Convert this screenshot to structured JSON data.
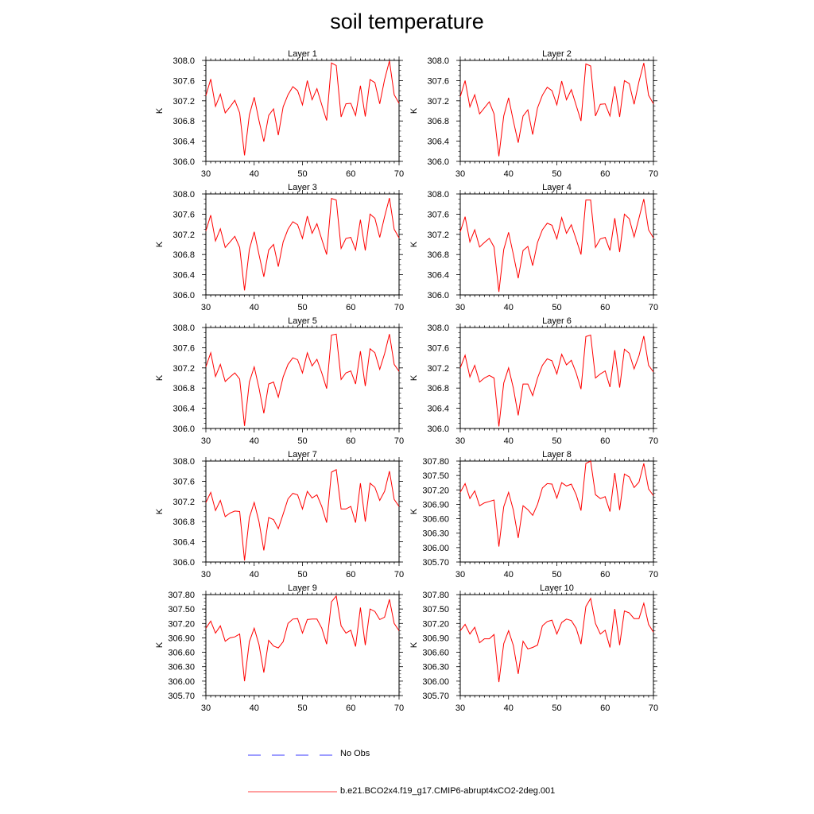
{
  "title": "soil temperature",
  "legend": {
    "items": [
      {
        "label": "No Obs",
        "color": "#3a3aff",
        "style": "dashed"
      },
      {
        "label": "b.e21.BCO2x4.f19_g17.CMIP6-abrupt4xCO2-2deg.001",
        "color": "#ff0000",
        "style": "solid"
      }
    ]
  },
  "colors": {
    "series": "#ff0000",
    "obs": "#3a3aff",
    "axis": "#000000"
  },
  "chart_data": [
    {
      "type": "line",
      "title": "Layer 1",
      "ylabel": "K",
      "xlim": [
        30,
        70
      ],
      "ylim": [
        306.0,
        308.0
      ],
      "xticks": [
        "30",
        "40",
        "50",
        "60",
        "70"
      ],
      "yticks": [
        "306.0",
        "306.4",
        "306.8",
        "307.2",
        "307.6",
        "308.0"
      ],
      "x": [
        30,
        31,
        32,
        33,
        34,
        35,
        36,
        37,
        38,
        39,
        40,
        41,
        42,
        43,
        44,
        45,
        46,
        47,
        48,
        49,
        50,
        51,
        52,
        53,
        54,
        55,
        56,
        57,
        58,
        59,
        60,
        61,
        62,
        63,
        64,
        65,
        66,
        67,
        68,
        69,
        70
      ],
      "series": [
        {
          "name": "b.e21.BCO2x4.f19_g17.CMIP6-abrupt4xCO2-2deg.001",
          "values": [
            307.3,
            307.63,
            307.09,
            307.33,
            306.96,
            307.08,
            307.21,
            306.96,
            306.12,
            306.92,
            307.27,
            306.81,
            306.39,
            306.91,
            307.04,
            306.52,
            307.08,
            307.32,
            307.48,
            307.4,
            307.12,
            307.6,
            307.22,
            307.44,
            307.12,
            306.81,
            307.95,
            307.9,
            306.88,
            307.14,
            307.15,
            306.91,
            307.5,
            306.89,
            307.62,
            307.56,
            307.14,
            307.62,
            307.99,
            307.32,
            307.15
          ]
        }
      ]
    },
    {
      "type": "line",
      "title": "Layer 2",
      "ylabel": "K",
      "xlim": [
        30,
        70
      ],
      "ylim": [
        306.0,
        308.0
      ],
      "xticks": [
        "30",
        "40",
        "50",
        "60",
        "70"
      ],
      "yticks": [
        "306.0",
        "306.4",
        "306.8",
        "307.2",
        "307.6",
        "308.0"
      ],
      "x": [
        30,
        31,
        32,
        33,
        34,
        35,
        36,
        37,
        38,
        39,
        40,
        41,
        42,
        43,
        44,
        45,
        46,
        47,
        48,
        49,
        50,
        51,
        52,
        53,
        54,
        55,
        56,
        57,
        58,
        59,
        60,
        61,
        62,
        63,
        64,
        65,
        66,
        67,
        68,
        69,
        70
      ],
      "series": [
        {
          "name": "b.e21.BCO2x4.f19_g17.CMIP6-abrupt4xCO2-2deg.001",
          "values": [
            307.28,
            307.6,
            307.08,
            307.32,
            306.94,
            307.06,
            307.18,
            306.94,
            306.1,
            306.9,
            307.26,
            306.8,
            306.37,
            306.9,
            307.02,
            306.53,
            307.06,
            307.31,
            307.47,
            307.4,
            307.12,
            307.59,
            307.22,
            307.42,
            307.11,
            306.8,
            307.93,
            307.89,
            306.9,
            307.13,
            307.14,
            306.9,
            307.49,
            306.88,
            307.6,
            307.54,
            307.13,
            307.58,
            307.95,
            307.31,
            307.14
          ]
        }
      ]
    },
    {
      "type": "line",
      "title": "Layer 3",
      "ylabel": "K",
      "xlim": [
        30,
        70
      ],
      "ylim": [
        306.0,
        308.0
      ],
      "xticks": [
        "30",
        "40",
        "50",
        "60",
        "70"
      ],
      "yticks": [
        "306.0",
        "306.4",
        "306.8",
        "307.2",
        "307.6",
        "308.0"
      ],
      "x": [
        30,
        31,
        32,
        33,
        34,
        35,
        36,
        37,
        38,
        39,
        40,
        41,
        42,
        43,
        44,
        45,
        46,
        47,
        48,
        49,
        50,
        51,
        52,
        53,
        54,
        55,
        56,
        57,
        58,
        59,
        60,
        61,
        62,
        63,
        64,
        65,
        66,
        67,
        68,
        69,
        70
      ],
      "series": [
        {
          "name": "b.e21.BCO2x4.f19_g17.CMIP6-abrupt4xCO2-2deg.001",
          "values": [
            307.27,
            307.58,
            307.07,
            307.31,
            306.94,
            307.05,
            307.16,
            306.94,
            306.09,
            306.9,
            307.25,
            306.8,
            306.36,
            306.89,
            307.0,
            306.56,
            307.05,
            307.3,
            307.45,
            307.39,
            307.12,
            307.56,
            307.22,
            307.41,
            307.1,
            306.8,
            307.91,
            307.88,
            306.92,
            307.12,
            307.14,
            306.89,
            307.49,
            306.88,
            307.6,
            307.52,
            307.14,
            307.55,
            307.92,
            307.3,
            307.13
          ]
        }
      ]
    },
    {
      "type": "line",
      "title": "Layer 4",
      "ylabel": "K",
      "xlim": [
        30,
        70
      ],
      "ylim": [
        306.0,
        308.0
      ],
      "xticks": [
        "30",
        "40",
        "50",
        "60",
        "70"
      ],
      "yticks": [
        "306.0",
        "306.4",
        "306.8",
        "307.2",
        "307.6",
        "308.0"
      ],
      "x": [
        30,
        31,
        32,
        33,
        34,
        35,
        36,
        37,
        38,
        39,
        40,
        41,
        42,
        43,
        44,
        45,
        46,
        47,
        48,
        49,
        50,
        51,
        52,
        53,
        54,
        55,
        56,
        57,
        58,
        59,
        60,
        61,
        62,
        63,
        64,
        65,
        66,
        67,
        68,
        69,
        70
      ],
      "series": [
        {
          "name": "b.e21.BCO2x4.f19_g17.CMIP6-abrupt4xCO2-2deg.001",
          "values": [
            307.25,
            307.55,
            307.05,
            307.29,
            306.95,
            307.04,
            307.12,
            306.95,
            306.06,
            306.9,
            307.24,
            306.8,
            306.33,
            306.88,
            306.96,
            306.58,
            307.04,
            307.29,
            307.42,
            307.38,
            307.11,
            307.53,
            307.22,
            307.39,
            307.1,
            306.8,
            307.88,
            307.88,
            306.94,
            307.11,
            307.14,
            306.88,
            307.52,
            306.85,
            307.6,
            307.51,
            307.15,
            307.52,
            307.9,
            307.29,
            307.13
          ]
        }
      ]
    },
    {
      "type": "line",
      "title": "Layer 5",
      "ylabel": "K",
      "xlim": [
        30,
        70
      ],
      "ylim": [
        306.0,
        308.0
      ],
      "xticks": [
        "30",
        "40",
        "50",
        "60",
        "70"
      ],
      "yticks": [
        "306.0",
        "306.4",
        "306.8",
        "307.2",
        "307.6",
        "308.0"
      ],
      "x": [
        30,
        31,
        32,
        33,
        34,
        35,
        36,
        37,
        38,
        39,
        40,
        41,
        42,
        43,
        44,
        45,
        46,
        47,
        48,
        49,
        50,
        51,
        52,
        53,
        54,
        55,
        56,
        57,
        58,
        59,
        60,
        61,
        62,
        63,
        64,
        65,
        66,
        67,
        68,
        69,
        70
      ],
      "series": [
        {
          "name": "b.e21.BCO2x4.f19_g17.CMIP6-abrupt4xCO2-2deg.001",
          "values": [
            307.22,
            307.5,
            307.03,
            307.27,
            306.93,
            307.02,
            307.1,
            306.98,
            306.05,
            306.92,
            307.22,
            306.8,
            306.3,
            306.88,
            306.92,
            306.62,
            307.02,
            307.27,
            307.4,
            307.36,
            307.1,
            307.5,
            307.24,
            307.37,
            307.1,
            306.79,
            307.85,
            307.87,
            306.97,
            307.1,
            307.14,
            306.88,
            307.53,
            306.84,
            307.58,
            307.5,
            307.17,
            307.48,
            307.87,
            307.27,
            307.13
          ]
        }
      ]
    },
    {
      "type": "line",
      "title": "Layer 6",
      "ylabel": "K",
      "xlim": [
        30,
        70
      ],
      "ylim": [
        306.0,
        308.0
      ],
      "xticks": [
        "30",
        "40",
        "50",
        "60",
        "70"
      ],
      "yticks": [
        "306.0",
        "306.4",
        "306.8",
        "307.2",
        "307.6",
        "308.0"
      ],
      "x": [
        30,
        31,
        32,
        33,
        34,
        35,
        36,
        37,
        38,
        39,
        40,
        41,
        42,
        43,
        44,
        45,
        46,
        47,
        48,
        49,
        50,
        51,
        52,
        53,
        54,
        55,
        56,
        57,
        58,
        59,
        60,
        61,
        62,
        63,
        64,
        65,
        66,
        67,
        68,
        69,
        70
      ],
      "series": [
        {
          "name": "b.e21.BCO2x4.f19_g17.CMIP6-abrupt4xCO2-2deg.001",
          "values": [
            307.2,
            307.45,
            307.02,
            307.25,
            306.92,
            307.0,
            307.05,
            307.0,
            306.04,
            306.9,
            307.2,
            306.8,
            306.26,
            306.88,
            306.88,
            306.65,
            307.0,
            307.25,
            307.38,
            307.34,
            307.08,
            307.47,
            307.26,
            307.35,
            307.1,
            306.78,
            307.82,
            307.85,
            307.0,
            307.08,
            307.14,
            306.82,
            307.55,
            306.81,
            307.57,
            307.49,
            307.18,
            307.44,
            307.83,
            307.25,
            307.12
          ]
        }
      ]
    },
    {
      "type": "line",
      "title": "Layer 7",
      "ylabel": "K",
      "xlim": [
        30,
        70
      ],
      "ylim": [
        306.0,
        308.0
      ],
      "xticks": [
        "30",
        "40",
        "50",
        "60",
        "70"
      ],
      "yticks": [
        "306.0",
        "306.4",
        "306.8",
        "307.2",
        "307.6",
        "308.0"
      ],
      "x": [
        30,
        31,
        32,
        33,
        34,
        35,
        36,
        37,
        38,
        39,
        40,
        41,
        42,
        43,
        44,
        45,
        46,
        47,
        48,
        49,
        50,
        51,
        52,
        53,
        54,
        55,
        56,
        57,
        58,
        59,
        60,
        61,
        62,
        63,
        64,
        65,
        66,
        67,
        68,
        69,
        70
      ],
      "series": [
        {
          "name": "b.e21.BCO2x4.f19_g17.CMIP6-abrupt4xCO2-2deg.001",
          "values": [
            307.18,
            307.38,
            307.02,
            307.22,
            306.9,
            306.97,
            307.01,
            307.0,
            306.03,
            306.88,
            307.18,
            306.8,
            306.23,
            306.88,
            306.84,
            306.66,
            306.95,
            307.25,
            307.36,
            307.33,
            307.05,
            307.4,
            307.27,
            307.33,
            307.1,
            306.78,
            307.78,
            307.83,
            307.05,
            307.05,
            307.1,
            306.78,
            307.56,
            306.8,
            307.56,
            307.48,
            307.22,
            307.4,
            307.8,
            307.24,
            307.1
          ]
        }
      ]
    },
    {
      "type": "line",
      "title": "Layer 8",
      "ylabel": "K",
      "xlim": [
        30,
        70
      ],
      "ylim": [
        305.7,
        307.8
      ],
      "xticks": [
        "30",
        "40",
        "50",
        "60",
        "70"
      ],
      "yticks": [
        "305.70",
        "306.00",
        "306.30",
        "306.60",
        "306.90",
        "307.20",
        "307.50",
        "307.80"
      ],
      "x": [
        30,
        31,
        32,
        33,
        34,
        35,
        36,
        37,
        38,
        39,
        40,
        41,
        42,
        43,
        44,
        45,
        46,
        47,
        48,
        49,
        50,
        51,
        52,
        53,
        54,
        55,
        56,
        57,
        58,
        59,
        60,
        61,
        62,
        63,
        64,
        65,
        66,
        67,
        68,
        69,
        70
      ],
      "series": [
        {
          "name": "b.e21.BCO2x4.f19_g17.CMIP6-abrupt4xCO2-2deg.001",
          "values": [
            307.15,
            307.33,
            307.02,
            307.18,
            306.87,
            306.93,
            306.96,
            306.99,
            306.02,
            306.85,
            307.15,
            306.78,
            306.2,
            306.87,
            306.79,
            306.67,
            306.9,
            307.24,
            307.33,
            307.32,
            307.03,
            307.35,
            307.28,
            307.32,
            307.1,
            306.77,
            307.75,
            307.8,
            307.1,
            307.02,
            307.06,
            306.75,
            307.55,
            306.78,
            307.53,
            307.47,
            307.25,
            307.36,
            307.75,
            307.22,
            307.08
          ]
        }
      ]
    },
    {
      "type": "line",
      "title": "Layer 9",
      "ylabel": "K",
      "xlim": [
        30,
        70
      ],
      "ylim": [
        305.7,
        307.8
      ],
      "xticks": [
        "30",
        "40",
        "50",
        "60",
        "70"
      ],
      "yticks": [
        "305.70",
        "306.00",
        "306.30",
        "306.60",
        "306.90",
        "307.20",
        "307.50",
        "307.80"
      ],
      "x": [
        30,
        31,
        32,
        33,
        34,
        35,
        36,
        37,
        38,
        39,
        40,
        41,
        42,
        43,
        44,
        45,
        46,
        47,
        48,
        49,
        50,
        51,
        52,
        53,
        54,
        55,
        56,
        57,
        58,
        59,
        60,
        61,
        62,
        63,
        64,
        65,
        66,
        67,
        68,
        69,
        70
      ],
      "series": [
        {
          "name": "b.e21.BCO2x4.f19_g17.CMIP6-abrupt4xCO2-2deg.001",
          "values": [
            307.1,
            307.25,
            307.0,
            307.15,
            306.83,
            306.9,
            306.92,
            306.98,
            306.0,
            306.82,
            307.1,
            306.76,
            306.18,
            306.85,
            306.73,
            306.69,
            306.82,
            307.2,
            307.29,
            307.3,
            307.0,
            307.28,
            307.29,
            307.29,
            307.1,
            306.77,
            307.65,
            307.77,
            307.15,
            307.0,
            307.06,
            306.72,
            307.53,
            306.75,
            307.5,
            307.45,
            307.28,
            307.33,
            307.7,
            307.2,
            307.05
          ]
        }
      ]
    },
    {
      "type": "line",
      "title": "Layer 10",
      "ylabel": "K",
      "xlim": [
        30,
        70
      ],
      "ylim": [
        305.7,
        307.8
      ],
      "xticks": [
        "30",
        "40",
        "50",
        "60",
        "70"
      ],
      "yticks": [
        "305.70",
        "306.00",
        "306.30",
        "306.60",
        "306.90",
        "307.20",
        "307.50",
        "307.80"
      ],
      "x": [
        30,
        31,
        32,
        33,
        34,
        35,
        36,
        37,
        38,
        39,
        40,
        41,
        42,
        43,
        44,
        45,
        46,
        47,
        48,
        49,
        50,
        51,
        52,
        53,
        54,
        55,
        56,
        57,
        58,
        59,
        60,
        61,
        62,
        63,
        64,
        65,
        66,
        67,
        68,
        69,
        70
      ],
      "series": [
        {
          "name": "b.e21.BCO2x4.f19_g17.CMIP6-abrupt4xCO2-2deg.001",
          "values": [
            307.05,
            307.18,
            306.98,
            307.12,
            306.8,
            306.88,
            306.88,
            306.97,
            305.98,
            306.78,
            307.05,
            306.74,
            306.15,
            306.83,
            306.67,
            306.7,
            306.75,
            307.15,
            307.24,
            307.27,
            306.98,
            307.22,
            307.29,
            307.26,
            307.1,
            306.77,
            307.55,
            307.72,
            307.2,
            306.98,
            307.06,
            306.7,
            307.5,
            306.75,
            307.46,
            307.42,
            307.3,
            307.3,
            307.62,
            307.18,
            307.02
          ]
        }
      ]
    }
  ]
}
